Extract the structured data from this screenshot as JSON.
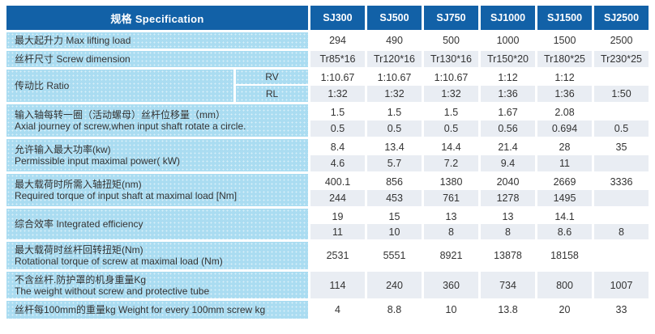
{
  "header": {
    "spec_label": "规格  Specification",
    "columns": [
      "SJ300",
      "SJ500",
      "SJ750",
      "SJ1000",
      "SJ1500",
      "SJ2500"
    ]
  },
  "colors": {
    "header_blue": "#1261a7",
    "label_blue": "#aadcf1",
    "stripe_gray": "#e9edf3",
    "text": "#333333"
  },
  "rows": [
    {
      "line1": "最大起升力 Max lifting load",
      "values": [
        [
          "294",
          "490",
          "500",
          "1000",
          "1500",
          "2500"
        ]
      ]
    },
    {
      "line1": "丝杆尺寸  Screw dimension",
      "values": [
        [
          "Tr85*16",
          "Tr120*16",
          "Tr130*16",
          "Tr150*20",
          "Tr180*25",
          "Tr230*25"
        ]
      ]
    },
    {
      "line1": "传动比 Ratio",
      "sub_labels": [
        "RV",
        "RL"
      ],
      "values": [
        [
          "1:10.67",
          "1:10.67",
          "1:10.67",
          "1:12",
          "1:12",
          ""
        ],
        [
          "1:32",
          "1:32",
          "1:32",
          "1:36",
          "1:36",
          "1:50"
        ]
      ]
    },
    {
      "line1": "输入轴每转一圈（活动螺母）丝杆位移量（mm）",
      "line2": "Axial journey of screw,when input shaft rotate a circle.",
      "values": [
        [
          "1.5",
          "1.5",
          "1.5",
          "1.67",
          "2.08",
          ""
        ],
        [
          "0.5",
          "0.5",
          "0.5",
          "0.56",
          "0.694",
          "0.5"
        ]
      ]
    },
    {
      "line1": "允许输入最大功率(kw)",
      "line2": "Permissible input maximal power( kW)",
      "values": [
        [
          "8.4",
          "13.4",
          "14.4",
          "21.4",
          "28",
          "35"
        ],
        [
          "4.6",
          "5.7",
          "7.2",
          "9.4",
          "11",
          ""
        ]
      ]
    },
    {
      "line1": "最大载荷时所需入轴扭矩(nm)",
      "line2": "Required torque of input shaft at maximal load [Nm]",
      "values": [
        [
          "400.1",
          "856",
          "1380",
          "2040",
          "2669",
          "3336"
        ],
        [
          "244",
          "453",
          "761",
          "1278",
          "1495",
          ""
        ]
      ]
    },
    {
      "line1": "综合效率  Integrated efficiency",
      "values": [
        [
          "19",
          "15",
          "13",
          "13",
          "14.1",
          ""
        ],
        [
          "11",
          "10",
          "8",
          "8",
          "8.6",
          "8"
        ]
      ]
    },
    {
      "line1": "最大载荷时丝杆回转扭矩(Nm)",
      "line2": "Rotational torque of screw at maximal load  (Nm)",
      "values": [
        [
          "2531",
          "5551",
          "8921",
          "13878",
          "18158",
          ""
        ]
      ]
    },
    {
      "line1": "不含丝杆.防护罩的机身重量Kg",
      "line2": "The weight without screw and protective tube",
      "values": [
        [
          "114",
          "240",
          "360",
          "734",
          "800",
          "1007"
        ]
      ]
    },
    {
      "line1": "丝杆每100mm的重量kg Weight for every 100mm screw kg",
      "values": [
        [
          "4",
          "8.8",
          "10",
          "13.8",
          "20",
          "33"
        ]
      ]
    }
  ]
}
